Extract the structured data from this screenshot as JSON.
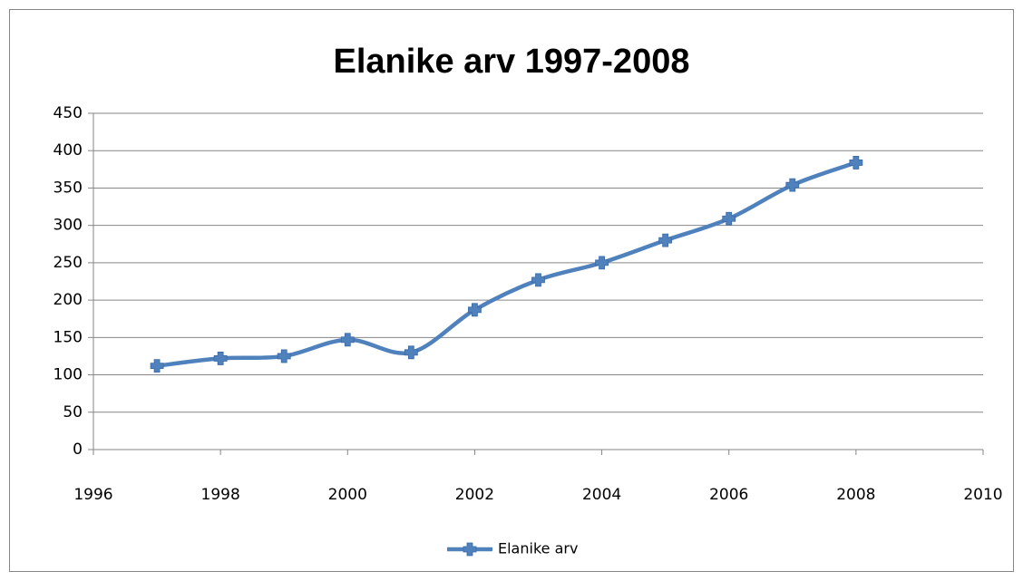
{
  "chart_data": {
    "type": "line",
    "title": "Elanike arv 1997-2008",
    "x": [
      1997,
      1998,
      1999,
      2000,
      2001,
      2002,
      2003,
      2004,
      2005,
      2006,
      2007,
      2008
    ],
    "series": [
      {
        "name": "Elanike arv",
        "color": "#4f81bd",
        "values": [
          112,
          122,
          125,
          147,
          130,
          187,
          227,
          250,
          280,
          309,
          354,
          384
        ]
      }
    ],
    "xlim": [
      1996,
      2010
    ],
    "xticks": [
      1996,
      1998,
      2000,
      2002,
      2004,
      2006,
      2008,
      2010
    ],
    "ylim": [
      0,
      450
    ],
    "yticks": [
      0,
      50,
      100,
      150,
      200,
      250,
      300,
      350,
      400,
      450
    ],
    "grid": true,
    "legend": "bottom"
  }
}
